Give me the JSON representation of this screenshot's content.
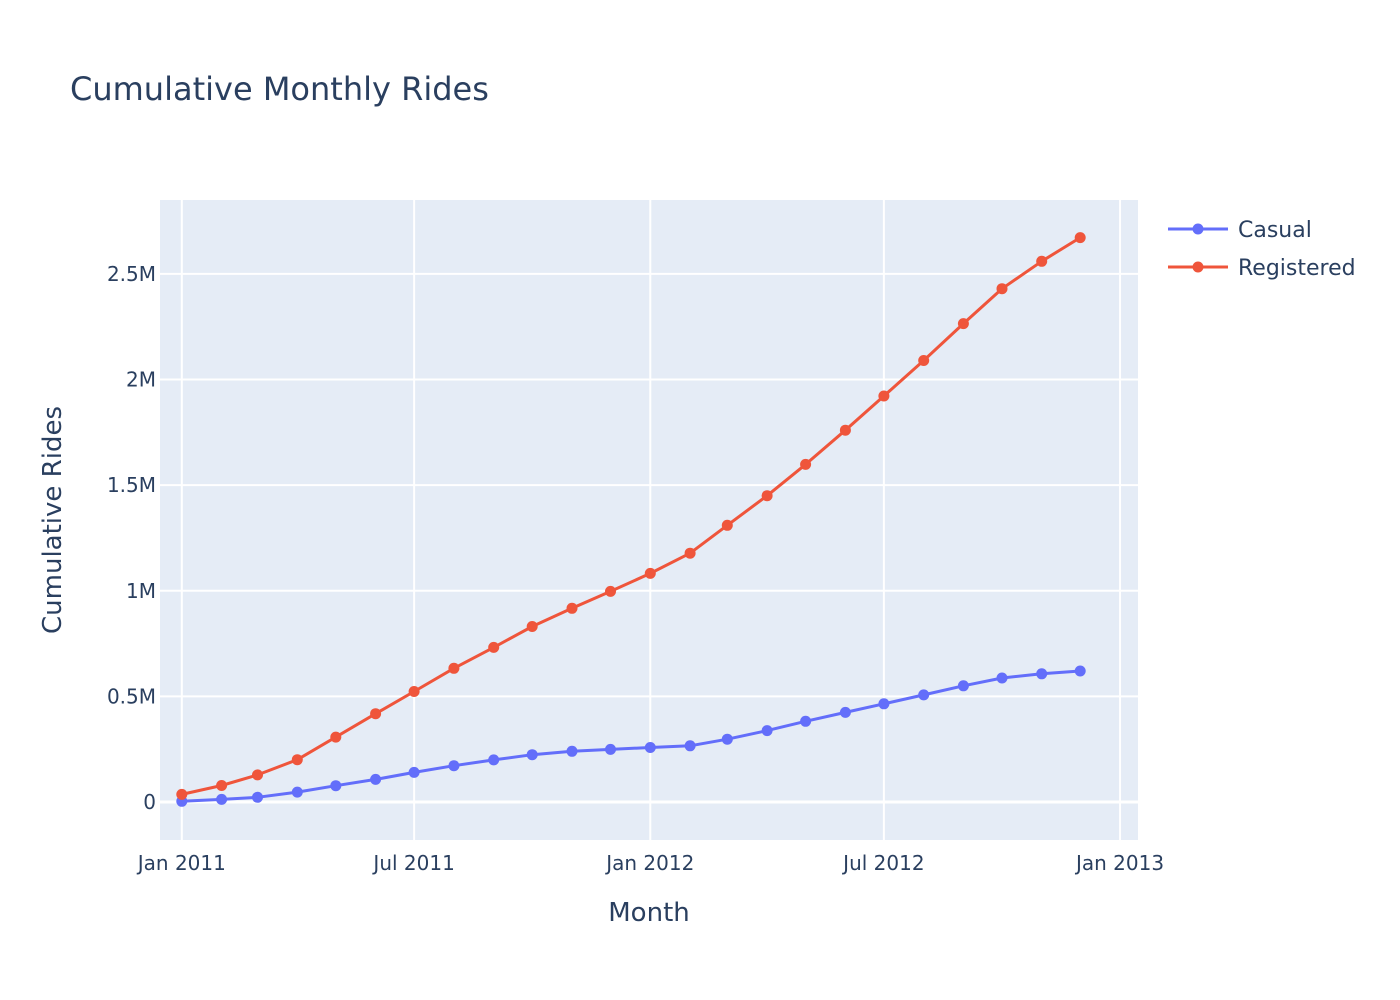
{
  "chart_data": {
    "type": "line",
    "title": "Cumulative Monthly Rides",
    "xlabel": "Month",
    "ylabel": "Cumulative Rides",
    "x": [
      "2011-01",
      "2011-02",
      "2011-03",
      "2011-04",
      "2011-05",
      "2011-06",
      "2011-07",
      "2011-08",
      "2011-09",
      "2011-10",
      "2011-11",
      "2011-12",
      "2012-01",
      "2012-02",
      "2012-03",
      "2012-04",
      "2012-05",
      "2012-06",
      "2012-07",
      "2012-08",
      "2012-09",
      "2012-10",
      "2012-11",
      "2012-12"
    ],
    "x_tick_labels": [
      {
        "date": "2011-01-01",
        "label": "Jan 2011"
      },
      {
        "date": "2011-07-01",
        "label": "Jul 2011"
      },
      {
        "date": "2012-01-01",
        "label": "Jan 2012"
      },
      {
        "date": "2012-07-01",
        "label": "Jul 2012"
      },
      {
        "date": "2013-01-01",
        "label": "Jan 2013"
      }
    ],
    "y_ticks": [
      {
        "value": 0,
        "label": "0"
      },
      {
        "value": 500000,
        "label": "0.5M"
      },
      {
        "value": 1000000,
        "label": "1M"
      },
      {
        "value": 1500000,
        "label": "1.5M"
      },
      {
        "value": 2000000,
        "label": "2M"
      },
      {
        "value": 2500000,
        "label": "2.5M"
      }
    ],
    "xlim": [
      "2010-12-15",
      "2013-01-15"
    ],
    "ylim": [
      -180000,
      2850000
    ],
    "grid": true,
    "legend_position": "top-right",
    "series": [
      {
        "name": "Casual",
        "color": "#636efa",
        "values": [
          3000,
          12000,
          22000,
          47000,
          77000,
          107000,
          140000,
          172000,
          199000,
          224000,
          240000,
          249000,
          258000,
          266000,
          297000,
          338000,
          382000,
          424000,
          465000,
          507000,
          550000,
          587000,
          607000,
          620000
        ]
      },
      {
        "name": "Registered",
        "color": "#ef553b",
        "values": [
          36000,
          78000,
          128000,
          200000,
          307000,
          418000,
          523000,
          633000,
          732000,
          831000,
          917000,
          997000,
          1082000,
          1178000,
          1310000,
          1450000,
          1598000,
          1760000,
          1922000,
          2090000,
          2265000,
          2430000,
          2560000,
          2672000
        ]
      }
    ]
  }
}
